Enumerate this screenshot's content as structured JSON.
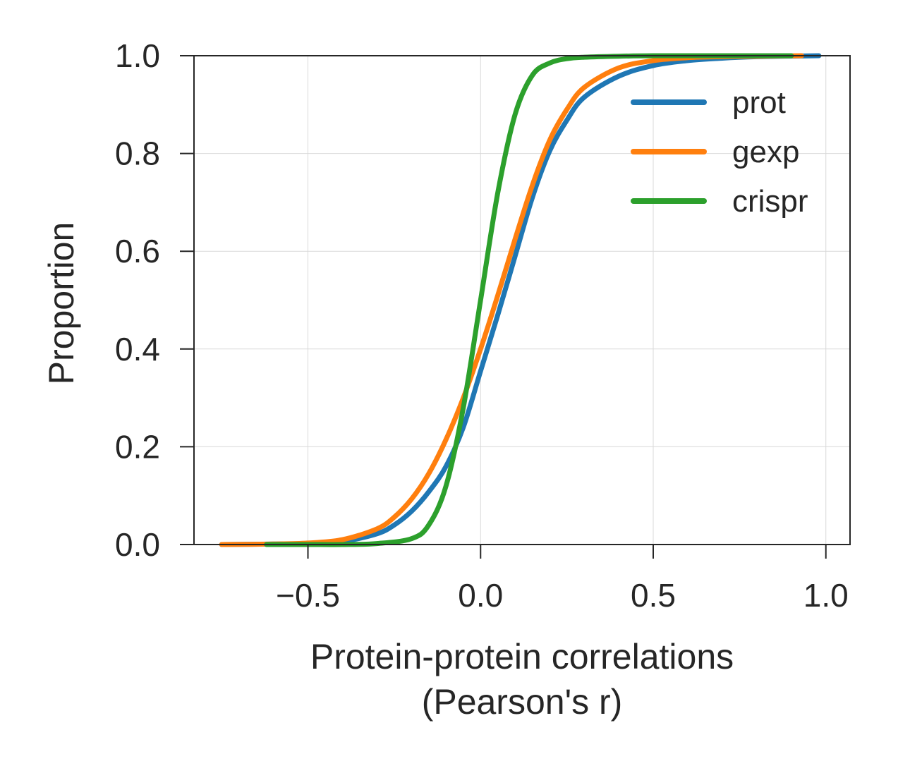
{
  "chart_data": {
    "type": "line",
    "xlabel": "Protein-protein correlations",
    "xlabel_line2": "(Pearson's r)",
    "ylabel": "Proportion",
    "xlim": [
      -0.83,
      1.07
    ],
    "ylim": [
      0.0,
      1.0
    ],
    "xticks": [
      -0.5,
      0.0,
      0.5,
      1.0
    ],
    "xtick_labels": [
      "−0.5",
      "0.0",
      "0.5",
      "1.0"
    ],
    "yticks": [
      0.0,
      0.2,
      0.4,
      0.6,
      0.8,
      1.0
    ],
    "ytick_labels": [
      "0.0",
      "0.2",
      "0.4",
      "0.6",
      "0.8",
      "1.0"
    ],
    "grid": true,
    "legend_position": "upper-right",
    "series": [
      {
        "name": "prot",
        "color": "#1f77b4",
        "x": [
          -0.75,
          -0.6,
          -0.5,
          -0.4,
          -0.3,
          -0.25,
          -0.2,
          -0.15,
          -0.1,
          -0.05,
          0.0,
          0.05,
          0.1,
          0.15,
          0.2,
          0.25,
          0.3,
          0.4,
          0.5,
          0.6,
          0.7,
          0.8,
          0.98
        ],
        "y": [
          0.0,
          0.001,
          0.002,
          0.006,
          0.022,
          0.04,
          0.068,
          0.108,
          0.16,
          0.24,
          0.355,
          0.47,
          0.59,
          0.71,
          0.805,
          0.868,
          0.915,
          0.958,
          0.98,
          0.99,
          0.995,
          0.998,
          1.0
        ]
      },
      {
        "name": "gexp",
        "color": "#ff7f0e",
        "x": [
          -0.75,
          -0.6,
          -0.5,
          -0.4,
          -0.3,
          -0.25,
          -0.2,
          -0.15,
          -0.1,
          -0.05,
          0.0,
          0.05,
          0.1,
          0.15,
          0.2,
          0.25,
          0.3,
          0.4,
          0.5,
          0.6,
          0.7,
          0.8,
          0.93
        ],
        "y": [
          0.0,
          0.001,
          0.003,
          0.01,
          0.032,
          0.056,
          0.093,
          0.145,
          0.215,
          0.3,
          0.4,
          0.51,
          0.625,
          0.735,
          0.827,
          0.89,
          0.935,
          0.975,
          0.99,
          0.996,
          0.998,
          0.999,
          1.0
        ]
      },
      {
        "name": "crispr",
        "color": "#2ca02c",
        "x": [
          -0.62,
          -0.5,
          -0.4,
          -0.3,
          -0.2,
          -0.15,
          -0.1,
          -0.05,
          0.0,
          0.05,
          0.1,
          0.15,
          0.2,
          0.25,
          0.3,
          0.4,
          0.5,
          0.6,
          0.75,
          0.9
        ],
        "y": [
          0.0,
          0.0,
          0.0,
          0.002,
          0.012,
          0.04,
          0.12,
          0.28,
          0.5,
          0.72,
          0.88,
          0.96,
          0.985,
          0.994,
          0.997,
          0.999,
          1.0,
          1.0,
          1.0,
          1.0
        ]
      }
    ]
  }
}
